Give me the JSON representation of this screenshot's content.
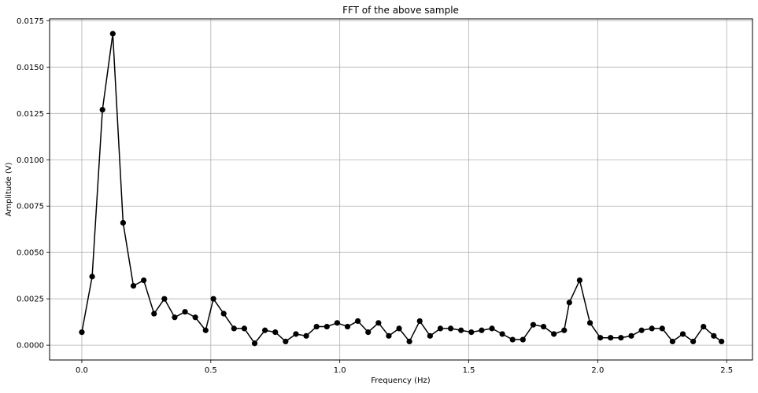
{
  "chart_data": {
    "type": "line",
    "title": "FFT of the above sample",
    "xlabel": "Frequency (Hz)",
    "ylabel": "Amplitude (V)",
    "xlim": [
      -0.125,
      2.6
    ],
    "ylim": [
      -0.0008,
      0.0176
    ],
    "xticks": [
      0.0,
      0.5,
      1.0,
      1.5,
      2.0,
      2.5
    ],
    "xtick_labels": [
      "0.0",
      "0.5",
      "1.0",
      "1.5",
      "2.0",
      "2.5"
    ],
    "yticks": [
      0.0,
      0.0025,
      0.005,
      0.0075,
      0.01,
      0.0125,
      0.015,
      0.0175
    ],
    "ytick_labels": [
      "0.0000",
      "0.0025",
      "0.0050",
      "0.0075",
      "0.0100",
      "0.0125",
      "0.0150",
      "0.0175"
    ],
    "grid": true,
    "series": [
      {
        "color": "#000000",
        "marker": "circle",
        "x": [
          0.0,
          0.04,
          0.08,
          0.12,
          0.16,
          0.2,
          0.24,
          0.28,
          0.32,
          0.36,
          0.4,
          0.44,
          0.48,
          0.51,
          0.55,
          0.59,
          0.63,
          0.67,
          0.71,
          0.75,
          0.79,
          0.83,
          0.87,
          0.91,
          0.95,
          0.99,
          1.03,
          1.07,
          1.11,
          1.15,
          1.19,
          1.23,
          1.27,
          1.31,
          1.35,
          1.39,
          1.43,
          1.47,
          1.51,
          1.55,
          1.59,
          1.63,
          1.67,
          1.71,
          1.75,
          1.79,
          1.83,
          1.87,
          1.89,
          1.93,
          1.97,
          2.01,
          2.05,
          2.09,
          2.13,
          2.17,
          2.21,
          2.25,
          2.29,
          2.33,
          2.37,
          2.41,
          2.45,
          2.48
        ],
        "values": [
          0.0007,
          0.0037,
          0.0127,
          0.0168,
          0.0066,
          0.0032,
          0.0035,
          0.0017,
          0.0025,
          0.0015,
          0.0018,
          0.0015,
          0.0008,
          0.0025,
          0.0017,
          0.0009,
          0.0009,
          0.0001,
          0.0008,
          0.0007,
          0.0002,
          0.0006,
          0.0005,
          0.001,
          0.001,
          0.0012,
          0.001,
          0.0013,
          0.0007,
          0.0012,
          0.0005,
          0.0009,
          0.0002,
          0.0013,
          0.0005,
          0.0009,
          0.0009,
          0.0008,
          0.0007,
          0.0008,
          0.0009,
          0.0006,
          0.0003,
          0.0003,
          0.0011,
          0.001,
          0.0006,
          0.0008,
          0.0023,
          0.0035,
          0.0012,
          0.0004,
          0.0004,
          0.0004,
          0.0005,
          0.0008,
          0.0009,
          0.0009,
          0.0002,
          0.0006,
          0.0002,
          0.001,
          0.0005,
          0.0002
        ]
      }
    ]
  }
}
